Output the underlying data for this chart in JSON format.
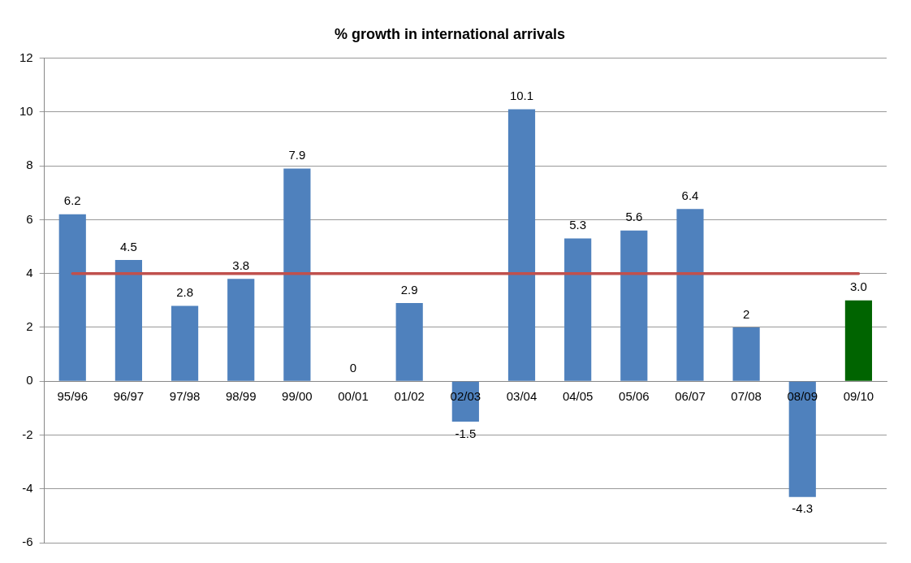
{
  "chart_data": {
    "type": "bar",
    "title": "% growth in international arrivals",
    "categories": [
      "95/96",
      "96/97",
      "97/98",
      "98/99",
      "99/00",
      "00/01",
      "01/02",
      "02/03",
      "03/04",
      "04/05",
      "05/06",
      "06/07",
      "07/08",
      "08/09",
      "09/10"
    ],
    "values": [
      6.2,
      4.5,
      2.8,
      3.8,
      7.9,
      0,
      2.9,
      -1.5,
      10.1,
      5.3,
      5.6,
      6.4,
      2,
      -4.3,
      3.0
    ],
    "value_labels": [
      "6.2",
      "4.5",
      "2.8",
      "3.8",
      "7.9",
      "0",
      "2.9",
      "-1.5",
      "10.1",
      "5.3",
      "5.6",
      "6.4",
      "2",
      "-4.3",
      "3.0"
    ],
    "colors": [
      "#4f81bd",
      "#4f81bd",
      "#4f81bd",
      "#4f81bd",
      "#4f81bd",
      "#4f81bd",
      "#4f81bd",
      "#4f81bd",
      "#4f81bd",
      "#4f81bd",
      "#4f81bd",
      "#4f81bd",
      "#4f81bd",
      "#4f81bd",
      "#006400"
    ],
    "ylim": [
      -6,
      12
    ],
    "yticks": [
      -6,
      -4,
      -2,
      0,
      2,
      4,
      6,
      8,
      10,
      12
    ],
    "grid": "y",
    "ref_lines": [
      {
        "axis": "y",
        "value": 4,
        "color": "#c0504d"
      }
    ]
  }
}
